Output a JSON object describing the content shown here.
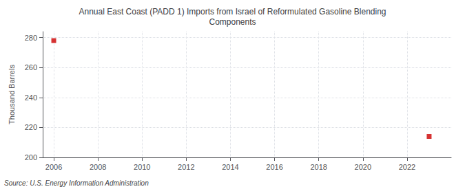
{
  "chart_data": {
    "type": "scatter",
    "title": "Annual East Coast (PADD 1) Imports from Israel of Reformulated Gasoline Blending\nComponents",
    "y_label": "Thousand Barrels",
    "annotation": "Source: U.S. Energy Information Administration",
    "x": [
      2006,
      2023
    ],
    "values": [
      278,
      214
    ],
    "color": "#cc0000",
    "marker": "square",
    "xlim": [
      2005.5,
      2024.0
    ],
    "xticks": [
      2006,
      2008,
      2010,
      2012,
      2014,
      2016,
      2018,
      2020,
      2022
    ],
    "ylim": [
      200,
      284
    ],
    "yticks": [
      200,
      220,
      240,
      260,
      280
    ],
    "grid": true
  }
}
